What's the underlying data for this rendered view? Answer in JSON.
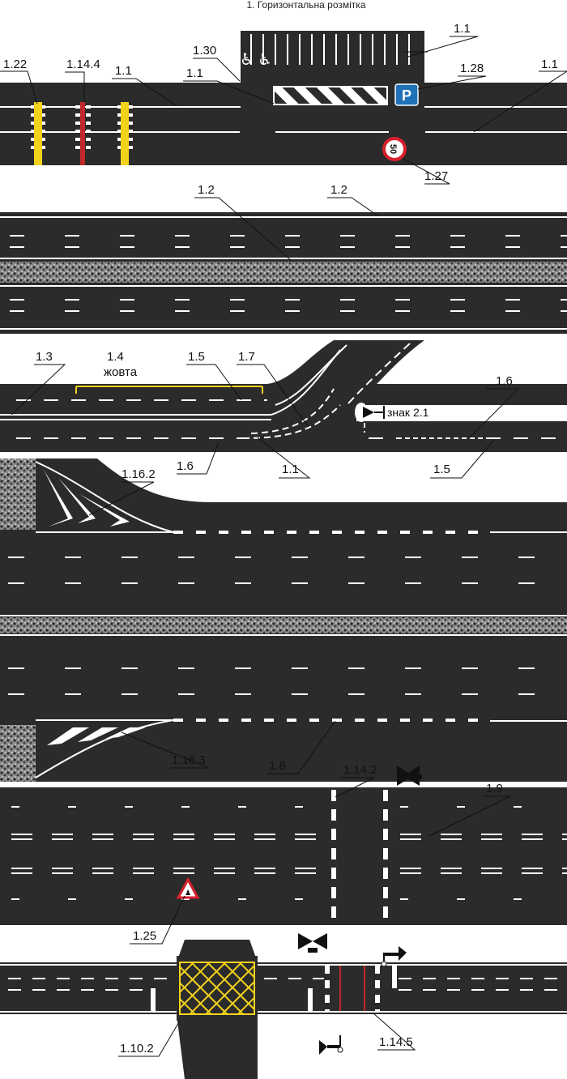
{
  "title": "1. Горизонтальна розмітка",
  "labels": {
    "a_1_22": "1.22",
    "a_1_14_4": "1.14.4",
    "a_1_1_left": "1.1",
    "a_1_30": "1.30",
    "a_1_1_center": "1.1",
    "a_1_1_top": "1.1",
    "a_1_28": "1.28",
    "a_1_1_right": "1.1",
    "a_1_27": "1.27",
    "b_1_2_left": "1.2",
    "b_1_2_right": "1.2",
    "c_1_3": "1.3",
    "c_1_4": "1.4",
    "c_yellow": "жовта",
    "c_1_5_top": "1.5",
    "c_1_7": "1.7",
    "c_sign_2_1": "знак 2.1",
    "c_1_6_right": "1.6",
    "c_1_6_left": "1.6",
    "c_1_1": "1.1",
    "c_1_5_bottom": "1.5",
    "d_1_16_2": "1.16.2",
    "d_1_16_3": "1.16.3",
    "d_1_8": "1.8",
    "e_1_14_2": "1.14.2",
    "e_1_9": "1.9",
    "e_1_25": "1.25",
    "f_1_10_2": "1.10.2",
    "f_1_14_5": "1.14.5"
  },
  "signs": {
    "parking": "P",
    "speed_limit": "50"
  },
  "colors": {
    "asphalt": "#2b2b2b",
    "marking_white": "#ffffff",
    "marking_yellow": "#f2d21b",
    "marking_red": "#c0282b",
    "parking_blue": "#1f72b8",
    "sign_red": "#d6202c"
  }
}
